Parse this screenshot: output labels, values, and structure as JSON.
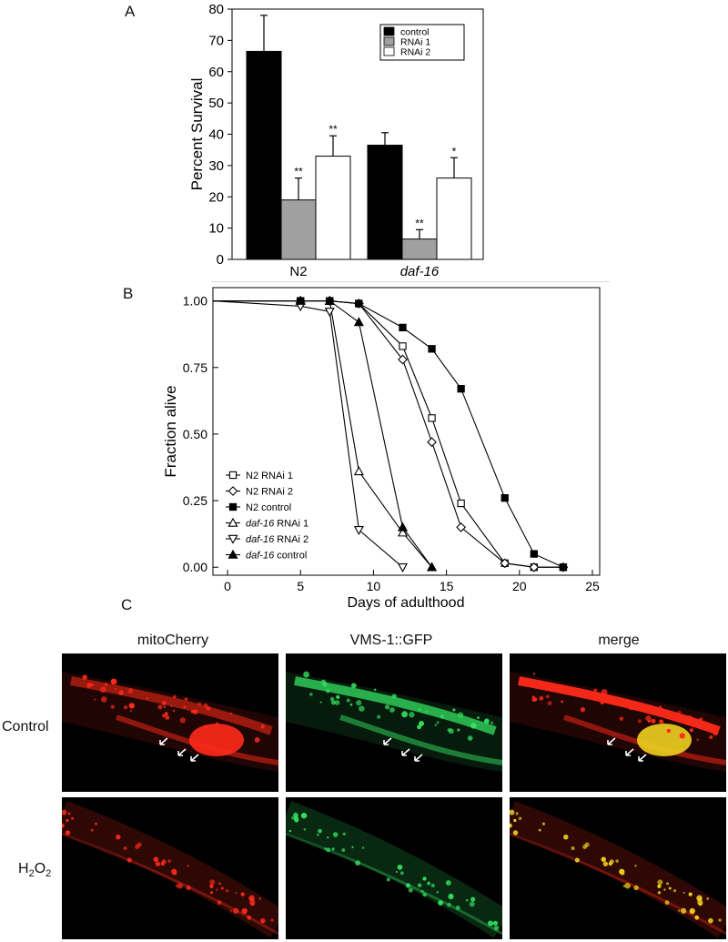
{
  "panels": {
    "a": "A",
    "b": "B",
    "c": "C"
  },
  "chart_data": [
    {
      "type": "bar",
      "ylabel": "Percent Survival",
      "ylim": [
        0,
        80
      ],
      "yticks": [
        0,
        10,
        20,
        30,
        40,
        50,
        60,
        70,
        80
      ],
      "categories": [
        "N2",
        "daf-16"
      ],
      "legend_position": "top-right",
      "series": [
        {
          "name": "control",
          "color": "#000000",
          "values": [
            66.5,
            36.5
          ],
          "errors": [
            11.5,
            4
          ],
          "marks": [
            "",
            ""
          ]
        },
        {
          "name": "RNAi 1",
          "color": "#a0a0a0",
          "values": [
            19,
            6.5
          ],
          "errors": [
            7,
            3
          ],
          "marks": [
            "**",
            "**"
          ]
        },
        {
          "name": "RNAi 2",
          "color": "#ffffff",
          "values": [
            33,
            26
          ],
          "errors": [
            6.5,
            6.5
          ],
          "marks": [
            "**",
            "*"
          ]
        }
      ]
    },
    {
      "type": "line",
      "xlabel": "Days of adulthood",
      "ylabel": "Fraction alive",
      "xlim": [
        -1,
        25.5
      ],
      "ylim": [
        -0.03,
        1.05
      ],
      "xticks": [
        0,
        5,
        10,
        15,
        20,
        25
      ],
      "yticks": [
        0.0,
        0.25,
        0.5,
        0.75,
        1.0
      ],
      "ytick_labels": [
        "0.00",
        "0.25",
        "0.50",
        "0.75",
        "1.00"
      ],
      "legend_position": "bottom-left",
      "series": [
        {
          "name": "N2 RNAi 1",
          "marker": "square-open",
          "x": [
            -1,
            5,
            7,
            9,
            12,
            14,
            16,
            19,
            21,
            23
          ],
          "y": [
            1.0,
            1.0,
            1.0,
            0.99,
            0.83,
            0.56,
            0.24,
            0.015,
            0.0,
            0.0
          ]
        },
        {
          "name": "N2 RNAi 2",
          "marker": "diamond-open",
          "x": [
            -1,
            5,
            7,
            9,
            12,
            14,
            16,
            19,
            21,
            23
          ],
          "y": [
            1.0,
            1.0,
            1.0,
            0.99,
            0.78,
            0.47,
            0.15,
            0.015,
            0.0,
            0.0
          ]
        },
        {
          "name": "N2 control",
          "marker": "square-filled",
          "x": [
            -1,
            5,
            7,
            9,
            12,
            14,
            16,
            19,
            21,
            23
          ],
          "y": [
            1.0,
            1.0,
            1.0,
            0.99,
            0.9,
            0.82,
            0.67,
            0.26,
            0.05,
            0.0
          ]
        },
        {
          "name": "daf-16 RNAi 1",
          "marker": "triangle-up-open",
          "x": [
            -1,
            5,
            7,
            9,
            12,
            14
          ],
          "y": [
            1.0,
            1.0,
            1.0,
            0.36,
            0.13,
            0.0
          ]
        },
        {
          "name": "daf-16 RNAi 2",
          "marker": "triangle-down-open",
          "x": [
            -1,
            5,
            7,
            9,
            12
          ],
          "y": [
            1.0,
            0.98,
            0.96,
            0.14,
            0.0
          ]
        },
        {
          "name": "daf-16 control",
          "marker": "triangle-up-filled",
          "x": [
            -1,
            5,
            7,
            9,
            12,
            14
          ],
          "y": [
            1.0,
            1.0,
            1.0,
            0.92,
            0.15,
            0.0
          ]
        }
      ]
    }
  ],
  "micrographs": {
    "columns": [
      "mitoCherry",
      "VMS-1::GFP",
      "merge"
    ],
    "rows": [
      "Control",
      "H2O2"
    ]
  },
  "colors": {
    "mitoCherry": "#ff2a1a",
    "gfp": "#34e060",
    "merge": "#f0d020"
  },
  "icons": {
    "arrow": "arrow-icon"
  }
}
